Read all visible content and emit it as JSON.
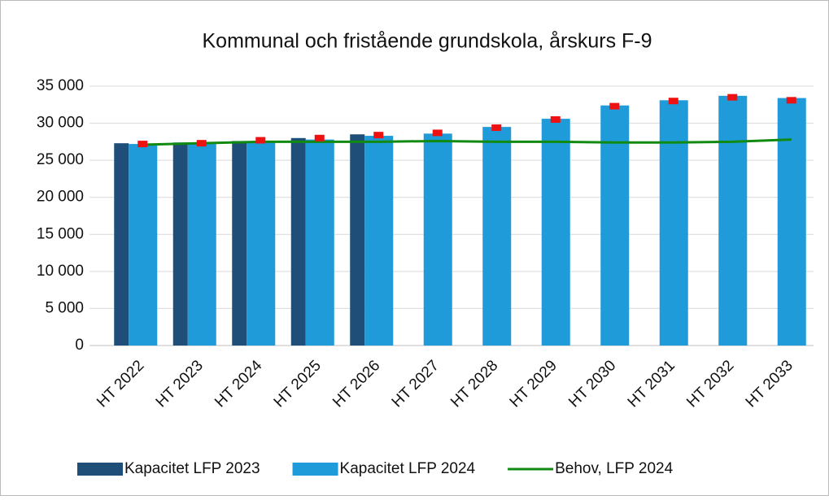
{
  "chart_data": {
    "type": "bar",
    "title": "Kommunal och fristående grundskola, årskurs F-9",
    "categories": [
      "HT 2022",
      "HT 2023",
      "HT 2024",
      "HT 2025",
      "HT 2026",
      "HT 2027",
      "HT 2028",
      "HT 2029",
      "HT 2030",
      "HT 2031",
      "HT 2032",
      "HT 2033"
    ],
    "series": [
      {
        "name": "Kapacitet LFP 2023",
        "type": "bar",
        "color": "#1f4e79",
        "values": [
          27300,
          27400,
          27600,
          28000,
          28500,
          null,
          null,
          null,
          null,
          null,
          null,
          null
        ]
      },
      {
        "name": "Kapacitet  LFP 2024",
        "type": "bar",
        "color": "#1f9bd9",
        "values": [
          27200,
          27200,
          27500,
          27800,
          28300,
          28600,
          29500,
          30600,
          32400,
          33100,
          33700,
          33400
        ]
      },
      {
        "name": "Behov, LFP 2024",
        "type": "line",
        "color": "#108a10",
        "values": [
          27100,
          27300,
          27500,
          27500,
          27500,
          27600,
          27500,
          27500,
          27400,
          27400,
          27500,
          27800
        ]
      },
      {
        "type": "marker",
        "color": "#ee1111",
        "values": [
          27200,
          27300,
          27700,
          28000,
          28400,
          28700,
          29400,
          30500,
          32300,
          33000,
          33500,
          33100
        ]
      }
    ],
    "ylim": [
      0,
      35000
    ],
    "yticks": [
      0,
      {
        "value": 5000,
        "label": "5 000"
      },
      {
        "value": 10000,
        "label": "10 000"
      },
      {
        "value": 15000,
        "label": "15 000"
      },
      {
        "value": 20000,
        "label": "20 000"
      },
      {
        "value": 25000,
        "label": "25 000"
      },
      {
        "value": 30000,
        "label": "30 000"
      },
      {
        "value": 35000,
        "label": "35 000"
      }
    ],
    "grid": true,
    "legend": "bottom"
  }
}
